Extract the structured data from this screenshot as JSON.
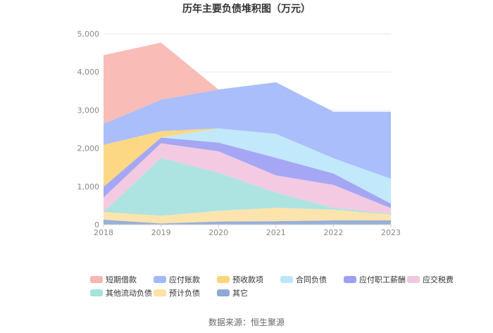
{
  "chart_data": {
    "type": "area",
    "stacked": true,
    "title": "历年主要负债堆积图（万元）",
    "source": "数据来源：恒生聚源",
    "x": [
      "2018",
      "2019",
      "2020",
      "2021",
      "2022",
      "2023"
    ],
    "ylim": [
      0,
      5000
    ],
    "yticks": [
      0,
      1000,
      2000,
      3000,
      4000,
      5000
    ],
    "ytick_labels": [
      "0",
      "1,000",
      "2,000",
      "3,000",
      "4,000",
      "5,000"
    ],
    "grid": true,
    "legend_position": "bottom",
    "series": [
      {
        "name": "其它",
        "color": "#8fa8d6",
        "values": [
          130,
          30,
          80,
          90,
          110,
          110
        ]
      },
      {
        "name": "预计负债",
        "color": "#fde2a6",
        "values": [
          200,
          200,
          280,
          350,
          280,
          150
        ]
      },
      {
        "name": "其他流动负债",
        "color": "#a6e2e0",
        "values": [
          0,
          1520,
          1000,
          400,
          50,
          20
        ]
      },
      {
        "name": "应交税费",
        "color": "#f2c6e0",
        "values": [
          380,
          380,
          560,
          450,
          600,
          150
        ]
      },
      {
        "name": "应付职工薪酬",
        "color": "#9d9ff3",
        "values": [
          280,
          150,
          230,
          460,
          300,
          120
        ]
      },
      {
        "name": "合同负债",
        "color": "#bde6fb",
        "values": [
          0,
          0,
          370,
          630,
          400,
          650
        ]
      },
      {
        "name": "预收款项",
        "color": "#fdd57a",
        "values": [
          1100,
          170,
          0,
          0,
          0,
          0
        ]
      },
      {
        "name": "应付账款",
        "color": "#a3b9fb",
        "values": [
          550,
          820,
          1020,
          1350,
          1220,
          1760
        ]
      },
      {
        "name": "短期借款",
        "color": "#f8b6b1",
        "values": [
          1800,
          1500,
          0,
          0,
          0,
          0
        ]
      }
    ],
    "legend_order": [
      "短期借款",
      "应付账款",
      "预收款项",
      "合同负债",
      "应付职工薪酬",
      "应交税费",
      "其他流动负债",
      "预计负债",
      "其它"
    ]
  }
}
